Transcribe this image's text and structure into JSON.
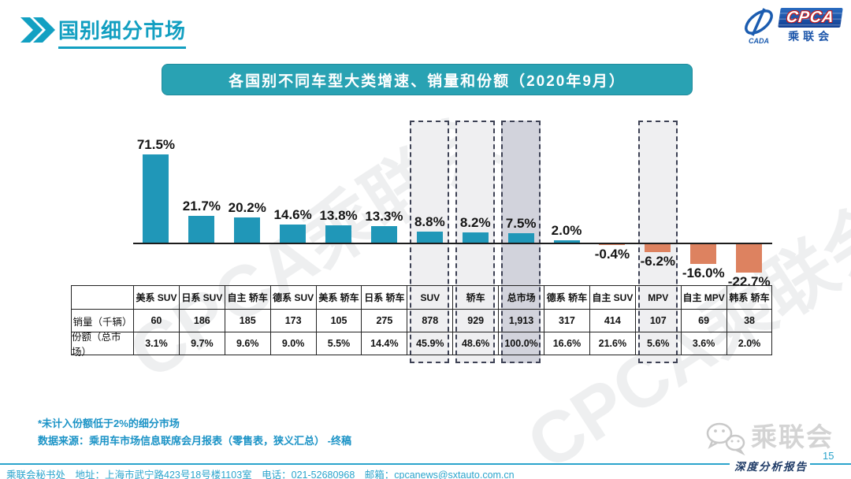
{
  "header": {
    "title": "国别细分市场"
  },
  "logo": {
    "acronym": "CPCA",
    "emblem_sub": "CADA",
    "name": "乘联会"
  },
  "banner": {
    "title": "各国别不同车型大类增速、销量和份额（2020年9月）"
  },
  "watermark": {
    "text": "CPCA乘联会"
  },
  "chart_data": {
    "type": "bar",
    "title": "各国别不同车型大类增速、销量和份额（2020年9月）",
    "categories": [
      "美系 SUV",
      "日系 SUV",
      "自主 轿车",
      "德系 SUV",
      "美系 轿车",
      "日系 轿车",
      "SUV",
      "轿车",
      "总市场",
      "德系 轿车",
      "自主 SUV",
      "MPV",
      "自主 MPV",
      "韩系 轿车"
    ],
    "series": [
      {
        "name": "增速",
        "unit": "%",
        "values": [
          71.5,
          21.7,
          20.2,
          14.6,
          13.8,
          13.3,
          8.8,
          8.2,
          7.5,
          2.0,
          -0.4,
          -6.2,
          -16.0,
          -22.7
        ]
      }
    ],
    "ylim": [
      -30,
      80
    ],
    "grid": false,
    "legend": false,
    "highlighted_categories": [
      "SUV",
      "轿车",
      "总市场",
      "MPV"
    ],
    "emphasized_category": "总市场",
    "bar_color_positive": "#2097b8",
    "bar_color_negative": "#dd8260"
  },
  "table": {
    "row_labels": [
      "销量（千辆）",
      "份额（总市场）"
    ],
    "sales_thousand": [
      "60",
      "186",
      "185",
      "173",
      "105",
      "275",
      "878",
      "929",
      "1,913",
      "317",
      "414",
      "107",
      "69",
      "38"
    ],
    "share_of_total": [
      "3.1%",
      "9.7%",
      "9.6%",
      "9.0%",
      "5.5%",
      "14.4%",
      "45.9%",
      "48.6%",
      "100.0%",
      "16.6%",
      "21.6%",
      "5.6%",
      "3.6%",
      "2.0%"
    ]
  },
  "footnotes": {
    "line1": "*未计入份额低于2%的细分市场",
    "line2": "数据来源：乘用车市场信息联席会月报表（零售表，狭义汇总）  -终稿"
  },
  "footer": {
    "contact": "乘联会秘书处　地址：上海市武宁路423号18号楼1103室　电话：021-52680968　邮箱：cpcanews@sxtauto.com.cn",
    "page": "15",
    "report_series": "深度分析报告",
    "brand": "乘联会"
  }
}
